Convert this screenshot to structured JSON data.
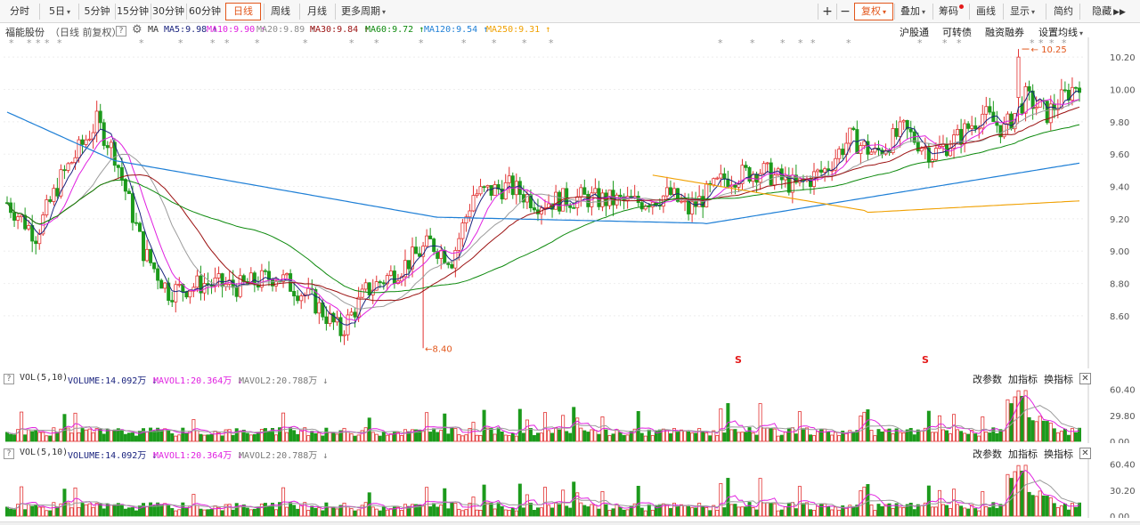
{
  "toolbar": {
    "periods": [
      "分时",
      "5日",
      "5分钟",
      "15分钟",
      "30分钟",
      "60分钟",
      "日线",
      "周线",
      "月线",
      "更多周期"
    ],
    "active": "日线",
    "right_tools": [
      "+",
      "−",
      "复权",
      "叠加",
      "筹码",
      "画线",
      "显示",
      "简约",
      "隐藏"
    ]
  },
  "main": {
    "stock_name": "福能股份",
    "period_note": "（日线 前复权）",
    "ma_label": "MA",
    "ma": [
      {
        "label": "MA5:9.98",
        "arrow": "↑",
        "color": "#1a237e"
      },
      {
        "label": "MA10:9.90",
        "arrow": "↑",
        "color": "#e020e0"
      },
      {
        "label": "MA20:9.89",
        "arrow": "↑",
        "color": "#8c8c8c"
      },
      {
        "label": "MA30:9.84",
        "arrow": "↑",
        "color": "#9b1111"
      },
      {
        "label": "MA60:9.72",
        "arrow": "↑",
        "color": "#0e8a0e"
      },
      {
        "label": "MA120:9.54",
        "arrow": "↑",
        "color": "#1e7fd6"
      },
      {
        "label": "MA250:9.31",
        "arrow": "↑",
        "color": "#f0a000"
      }
    ],
    "links": [
      "沪股通",
      "可转债",
      "融资融券",
      "设置均线"
    ],
    "price_axis": [
      "10.20",
      "10.00",
      "9.80",
      "9.60",
      "9.40",
      "9.20",
      "9.00",
      "8.80",
      "8.60"
    ],
    "high_mark": "10.25",
    "low_mark": "8.40",
    "s_marker": "S"
  },
  "volume_panels": [
    {
      "title": "VOL(5,10)",
      "volume": "VOLUME:14.092万",
      "mavol1": "MAVOL1:20.364万",
      "mavol2": "MAVOL2:20.788万",
      "axis": [
        "60.40",
        "29.80",
        "0.00"
      ],
      "actions": [
        "改参数",
        "加指标",
        "换指标"
      ]
    },
    {
      "title": "VOL(5,10)",
      "volume": "VOLUME:14.092万",
      "mavol1": "MAVOL1:20.364万",
      "mavol2": "MAVOL2:20.788万",
      "axis": [
        "60.40",
        "30.20",
        "0.00"
      ],
      "actions": [
        "改参数",
        "加指标",
        "换指标"
      ]
    }
  ],
  "colors": {
    "up": "#e23232",
    "down": "#1c9a1c",
    "accent": "#e2571c"
  }
}
